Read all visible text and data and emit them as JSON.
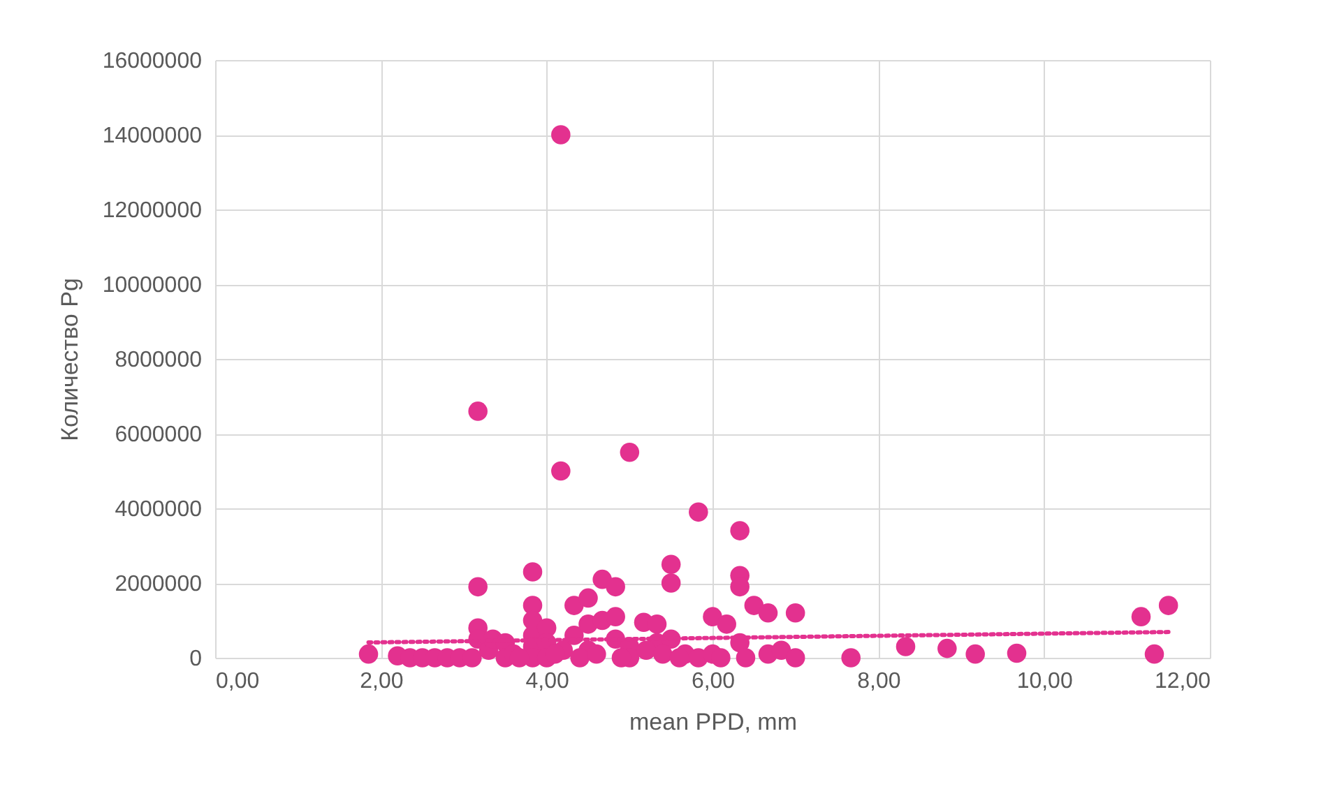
{
  "chart_data": {
    "type": "scatter",
    "xlabel": "mean PPD, mm",
    "ylabel": "Количество Pg",
    "xlim": [
      0,
      12
    ],
    "ylim": [
      0,
      16000000
    ],
    "xticks": [
      {
        "value": 0,
        "label": "0,00"
      },
      {
        "value": 2,
        "label": "2,00"
      },
      {
        "value": 4,
        "label": "4,00"
      },
      {
        "value": 6,
        "label": "6,00"
      },
      {
        "value": 8,
        "label": "8,00"
      },
      {
        "value": 10,
        "label": "10,00"
      },
      {
        "value": 12,
        "label": "12,00"
      }
    ],
    "yticks": [
      0,
      2000000,
      4000000,
      6000000,
      8000000,
      10000000,
      12000000,
      14000000,
      16000000
    ],
    "grid": true,
    "marker": "circle",
    "series": [
      {
        "color": "#e3318f",
        "x": [
          1.85,
          2.2,
          2.35,
          2.5,
          2.65,
          2.8,
          2.95,
          3.1,
          3.17,
          3.17,
          3.17,
          3.17,
          3.3,
          3.35,
          3.5,
          3.5,
          3.6,
          3.83,
          3.83,
          3.83,
          3.83,
          3.83,
          3.83,
          4.0,
          4.0,
          4.0,
          4.17,
          4.17,
          4.2,
          4.33,
          4.33,
          4.5,
          4.5,
          4.5,
          4.67,
          4.67,
          4.83,
          4.83,
          4.83,
          5.0,
          5.0,
          5.0,
          5.17,
          5.33,
          5.33,
          5.5,
          5.5,
          5.5,
          5.67,
          5.83,
          5.83,
          6.0,
          6.0,
          6.17,
          6.33,
          6.33,
          6.33,
          6.33,
          6.5,
          6.67,
          6.67,
          6.83,
          7.0,
          7.0,
          7.67,
          8.33,
          8.83,
          9.17,
          9.67,
          11.17,
          11.33,
          11.5,
          3.67,
          4.1,
          4.4,
          4.6,
          4.9,
          5.2,
          5.4,
          5.6,
          6.1,
          6.4
        ],
        "values": [
          100000,
          50000,
          0,
          0,
          0,
          0,
          0,
          0,
          6600000,
          1900000,
          800000,
          500000,
          200000,
          500000,
          400000,
          0,
          100000,
          2300000,
          1400000,
          1000000,
          600000,
          300000,
          0,
          800000,
          400000,
          0,
          14000000,
          5000000,
          200000,
          1400000,
          600000,
          1600000,
          900000,
          200000,
          2100000,
          1000000,
          1900000,
          1100000,
          500000,
          5500000,
          300000,
          0,
          950000,
          900000,
          400000,
          2500000,
          2000000,
          500000,
          100000,
          3900000,
          0,
          1100000,
          100000,
          900000,
          3400000,
          2200000,
          1900000,
          400000,
          1400000,
          1200000,
          100000,
          200000,
          1200000,
          0,
          0,
          300000,
          250000,
          100000,
          120000,
          1100000,
          100000,
          1400000,
          0,
          100000,
          0,
          100000,
          0,
          200000,
          100000,
          0,
          0,
          0
        ]
      },
      {
        "type": "line",
        "color": "#e3318f",
        "line_style": "dotted",
        "marker": "none",
        "x": [
          1.85,
          11.5
        ],
        "values": [
          410000,
          690000
        ]
      }
    ]
  }
}
